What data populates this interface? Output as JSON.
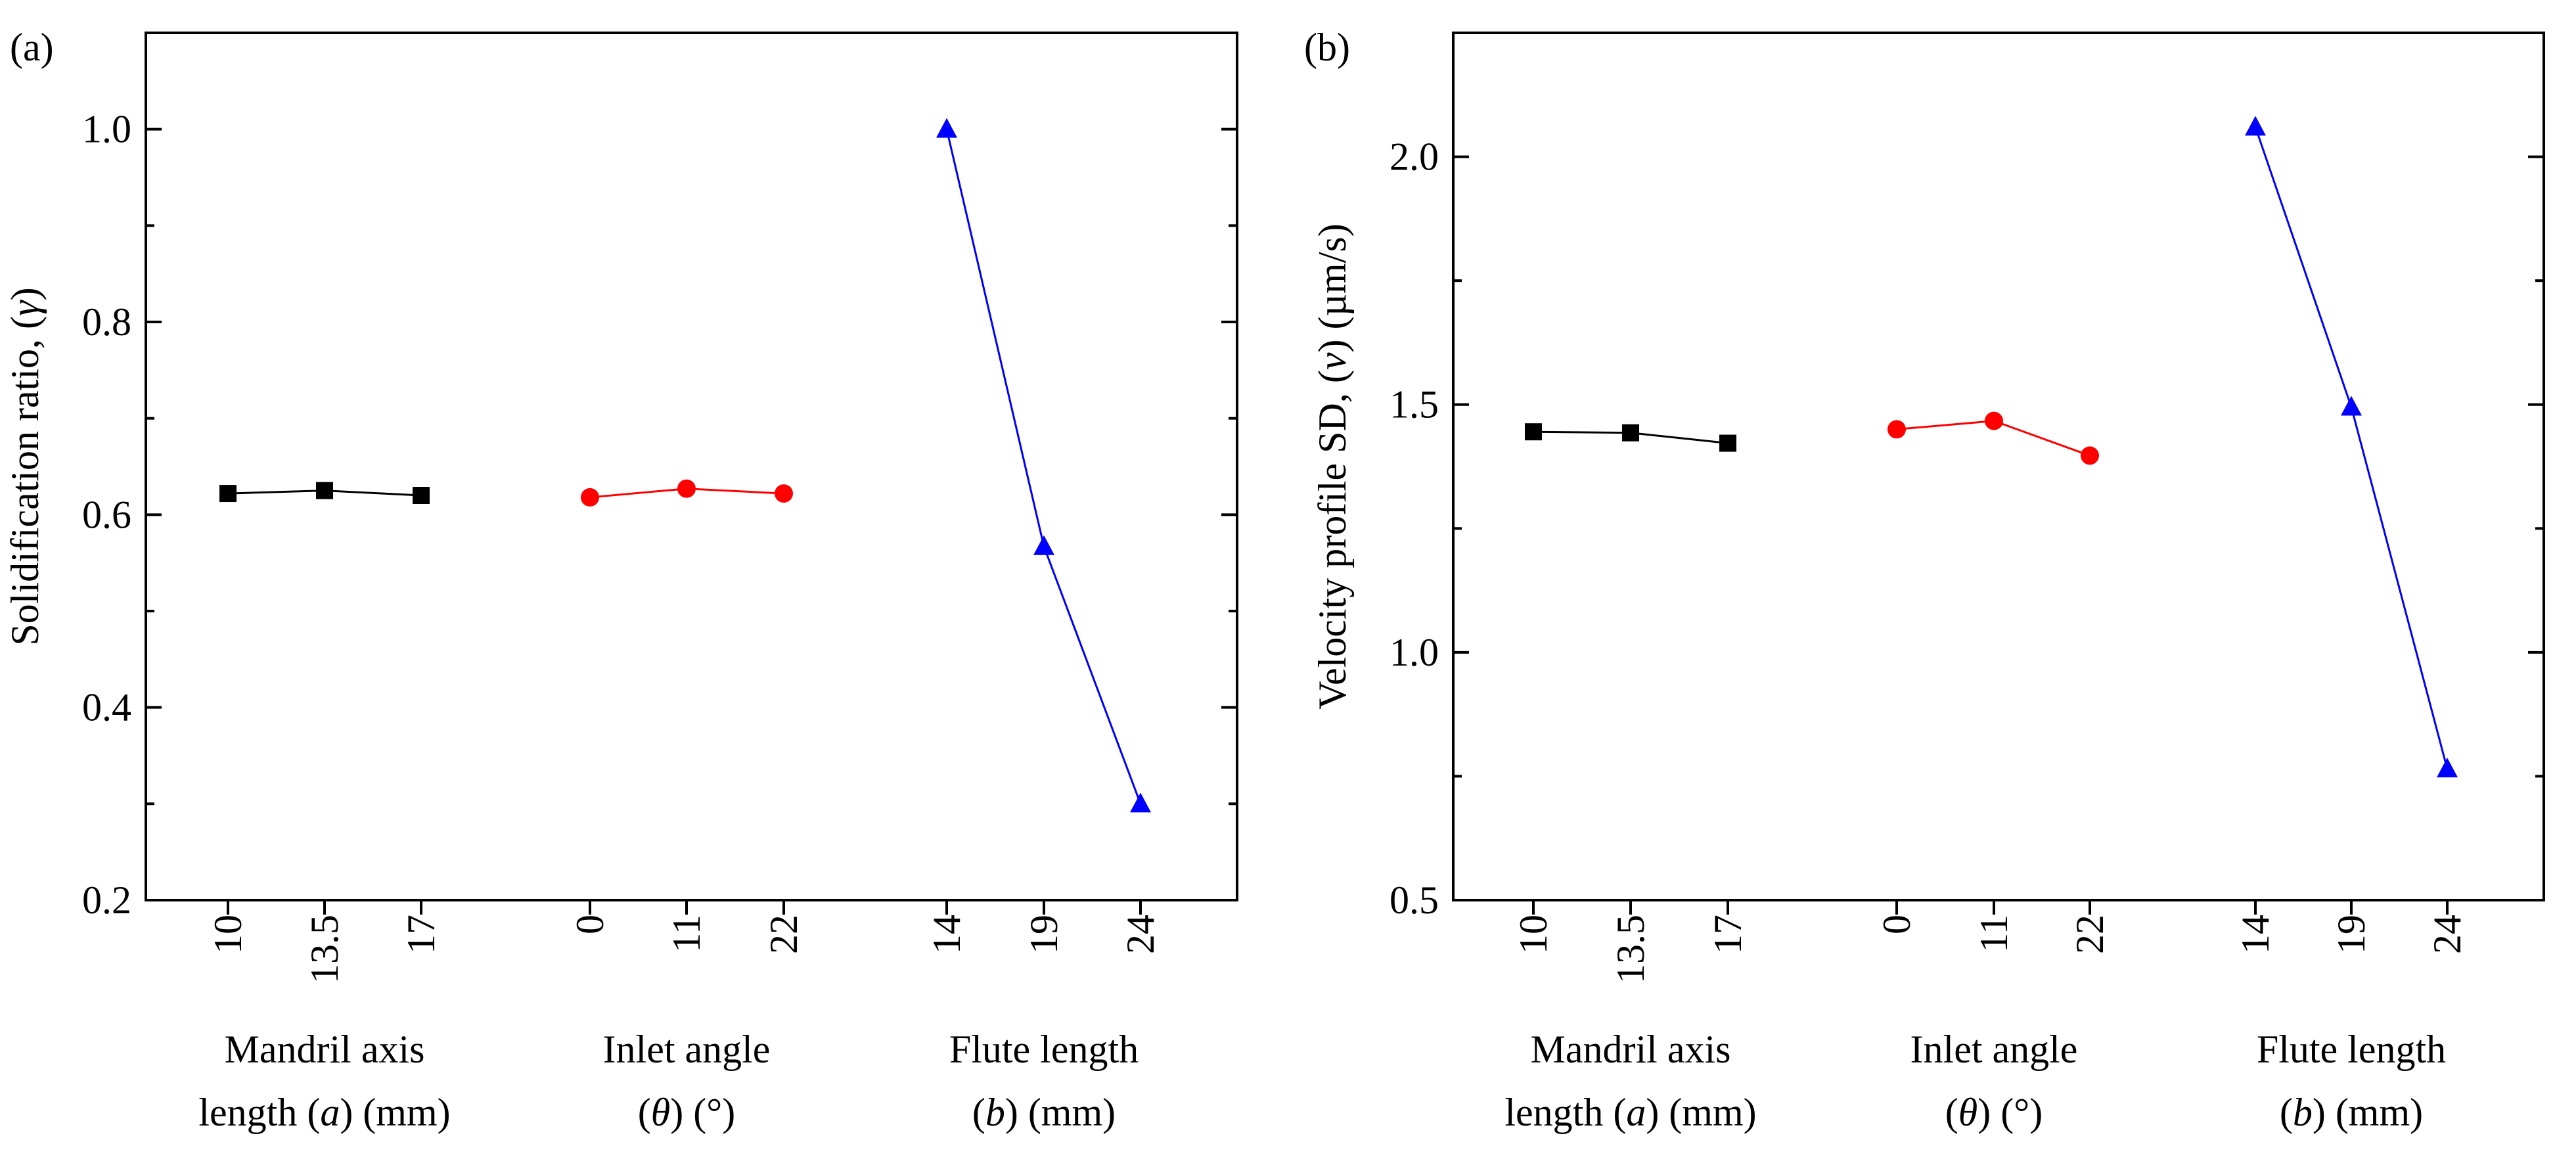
{
  "chart_data": [
    {
      "panel_label": "(a)",
      "type": "line",
      "ylabel_parts": [
        "Solidification ratio, (",
        "γ",
        ")"
      ],
      "ylim": [
        0.2,
        1.1
      ],
      "yticks": [
        {
          "value": 0.2,
          "label": "0.2"
        },
        {
          "value": 0.4,
          "label": "0.4"
        },
        {
          "value": 0.6,
          "label": "0.6"
        },
        {
          "value": 0.8,
          "label": "0.8"
        },
        {
          "value": 1.0,
          "label": "1.0"
        }
      ],
      "y_minor_ticks": [
        0.3,
        0.5,
        0.7,
        0.9
      ],
      "groups": [
        {
          "name": "Mandril axis length",
          "color": "#000000",
          "marker": "square",
          "label_line1": "Mandril axis",
          "label_line2_parts": [
            "length (",
            "a",
            ") (mm)"
          ],
          "categories": [
            "10",
            "13.5",
            "17"
          ],
          "values": [
            0.622,
            0.625,
            0.62
          ]
        },
        {
          "name": "Inlet angle",
          "color": "#ff0000",
          "marker": "circle",
          "label_line1": "Inlet angle",
          "label_line2_parts": [
            "(",
            "θ",
            ") (°)"
          ],
          "categories": [
            "0",
            "11",
            "22"
          ],
          "values": [
            0.618,
            0.627,
            0.622
          ]
        },
        {
          "name": "Flute length",
          "color": "#0000ff",
          "marker": "triangle",
          "label_line1": "Flute length",
          "label_line2_parts": [
            "(",
            "b",
            ") (mm)"
          ],
          "categories": [
            "14",
            "19",
            "24"
          ],
          "values": [
            1.0,
            0.567,
            0.3
          ]
        }
      ]
    },
    {
      "panel_label": "(b)",
      "type": "line",
      "ylabel_parts": [
        "Velocity profile  SD, (",
        "v",
        ") (µm/s)"
      ],
      "ylim": [
        0.5,
        2.25
      ],
      "yticks": [
        {
          "value": 0.5,
          "label": "0.5"
        },
        {
          "value": 1.0,
          "label": "1.0"
        },
        {
          "value": 1.5,
          "label": "1.5"
        },
        {
          "value": 2.0,
          "label": "2.0"
        }
      ],
      "y_minor_ticks": [
        0.75,
        1.25,
        1.75
      ],
      "groups": [
        {
          "name": "Mandril axis length",
          "color": "#000000",
          "marker": "square",
          "label_line1": "Mandril axis",
          "label_line2_parts": [
            "length (",
            "a",
            ") (mm)"
          ],
          "categories": [
            "10",
            "13.5",
            "17"
          ],
          "values": [
            1.445,
            1.443,
            1.422
          ]
        },
        {
          "name": "Inlet angle",
          "color": "#ff0000",
          "marker": "circle",
          "label_line1": "Inlet angle",
          "label_line2_parts": [
            "(",
            "θ",
            ") (°)"
          ],
          "categories": [
            "0",
            "11",
            "22"
          ],
          "values": [
            1.45,
            1.467,
            1.397
          ]
        },
        {
          "name": "Flute length",
          "color": "#0000ff",
          "marker": "triangle",
          "label_line1": "Flute length",
          "label_line2_parts": [
            "(",
            "b",
            ") (mm)"
          ],
          "categories": [
            "14",
            "19",
            "24"
          ],
          "values": [
            2.06,
            1.495,
            0.765
          ]
        }
      ]
    }
  ]
}
